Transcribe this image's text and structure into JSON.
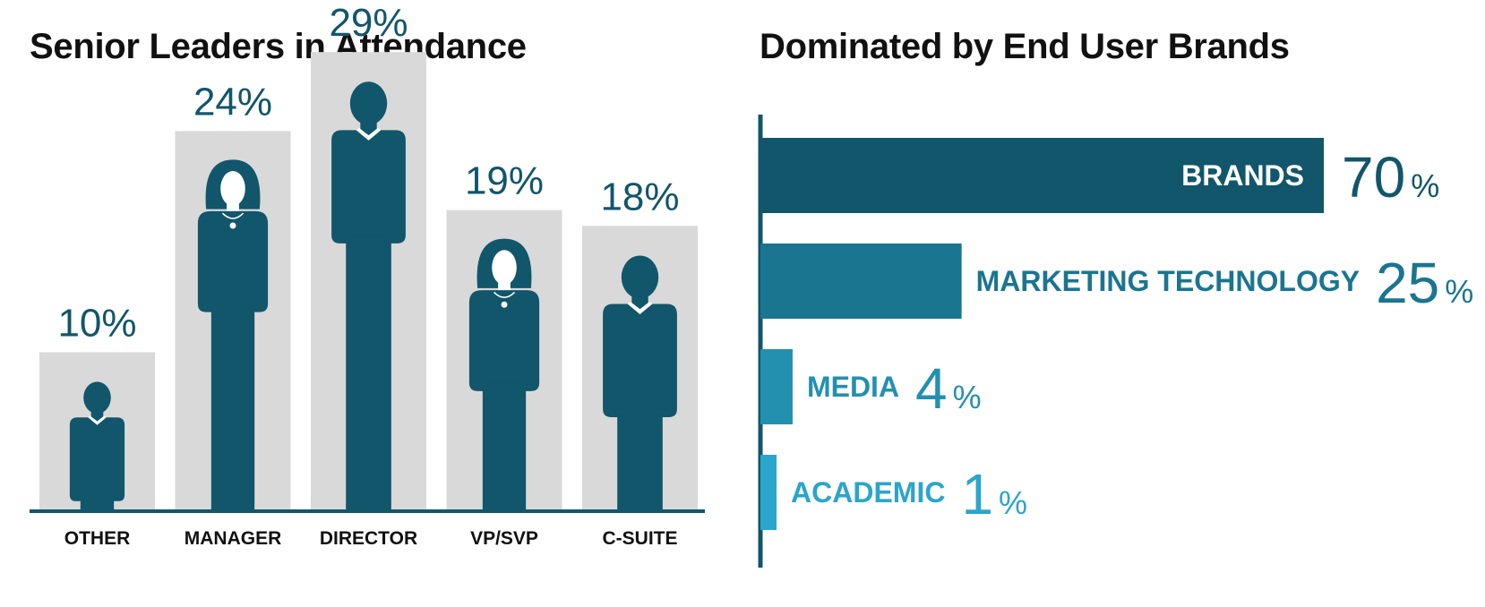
{
  "colors": {
    "dark_teal": "#11566b",
    "bar_bg": "#d9d9d9",
    "marketing": "#1a7590",
    "media": "#2390b0",
    "academic": "#2aa5cc",
    "text_dark": "#111111"
  },
  "chart_data": [
    {
      "type": "bar",
      "title": "Senior Leaders in Attendance",
      "categories": [
        "OTHER",
        "MANAGER",
        "DIRECTOR",
        "VP/SVP",
        "C-SUITE"
      ],
      "values": [
        10,
        24,
        29,
        19,
        18
      ],
      "value_labels": [
        "10%",
        "24%",
        "29%",
        "19%",
        "18%"
      ],
      "figure_icons": [
        "man-icon",
        "woman-icon",
        "man-icon",
        "woman-icon",
        "man-icon"
      ],
      "ylim": [
        0,
        32
      ],
      "grid": false,
      "legend": "none"
    },
    {
      "type": "bar",
      "orientation": "horizontal",
      "title": "Dominated by End User Brands",
      "categories": [
        "BRANDS",
        "MARKETING TECHNOLOGY",
        "MEDIA",
        "ACADEMIC"
      ],
      "values": [
        70,
        25,
        4,
        1
      ],
      "value_numbers": [
        "70",
        "25",
        "4",
        "1"
      ],
      "unit": "%",
      "xlim": [
        0,
        70
      ],
      "grid": false,
      "legend": "none"
    }
  ]
}
